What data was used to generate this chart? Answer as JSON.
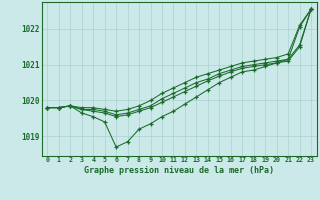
{
  "bg_color": "#cce9e9",
  "grid_color": "#b0d4d4",
  "line_color": "#1a6b2a",
  "title": "Graphe pression niveau de la mer (hPa)",
  "xlim": [
    -0.5,
    23.5
  ],
  "ylim": [
    1018.45,
    1022.75
  ],
  "yticks": [
    1019,
    1020,
    1021,
    1022
  ],
  "xticks": [
    0,
    1,
    2,
    3,
    4,
    5,
    6,
    7,
    8,
    9,
    10,
    11,
    12,
    13,
    14,
    15,
    16,
    17,
    18,
    19,
    20,
    21,
    22,
    23
  ],
  "line_upper": [
    1019.8,
    1019.8,
    1019.85,
    1019.8,
    1019.8,
    1019.75,
    1019.7,
    1019.75,
    1019.85,
    1020.0,
    1020.2,
    1020.35,
    1020.5,
    1020.65,
    1020.75,
    1020.85,
    1020.95,
    1021.05,
    1021.1,
    1021.15,
    1021.2,
    1021.3,
    1022.1,
    1022.55
  ],
  "line_mid1": [
    1019.8,
    1019.8,
    1019.85,
    1019.75,
    1019.75,
    1019.7,
    1019.6,
    1019.65,
    1019.75,
    1019.85,
    1020.05,
    1020.2,
    1020.35,
    1020.5,
    1020.6,
    1020.75,
    1020.85,
    1020.95,
    1021.0,
    1021.05,
    1021.1,
    1021.15,
    1021.55,
    1022.55
  ],
  "line_mid2": [
    1019.8,
    1019.8,
    1019.85,
    1019.75,
    1019.7,
    1019.65,
    1019.55,
    1019.6,
    1019.7,
    1019.8,
    1019.95,
    1020.1,
    1020.25,
    1020.4,
    1020.55,
    1020.68,
    1020.8,
    1020.9,
    1020.95,
    1021.0,
    1021.05,
    1021.1,
    1021.5,
    1022.55
  ],
  "line_lower": [
    1019.8,
    1019.8,
    1019.85,
    1019.65,
    1019.55,
    1019.4,
    1018.7,
    1018.85,
    1019.2,
    1019.35,
    1019.55,
    1019.7,
    1019.9,
    1020.1,
    1020.3,
    1020.5,
    1020.65,
    1020.8,
    1020.85,
    1020.95,
    1021.05,
    1021.15,
    1022.05,
    1022.55
  ]
}
